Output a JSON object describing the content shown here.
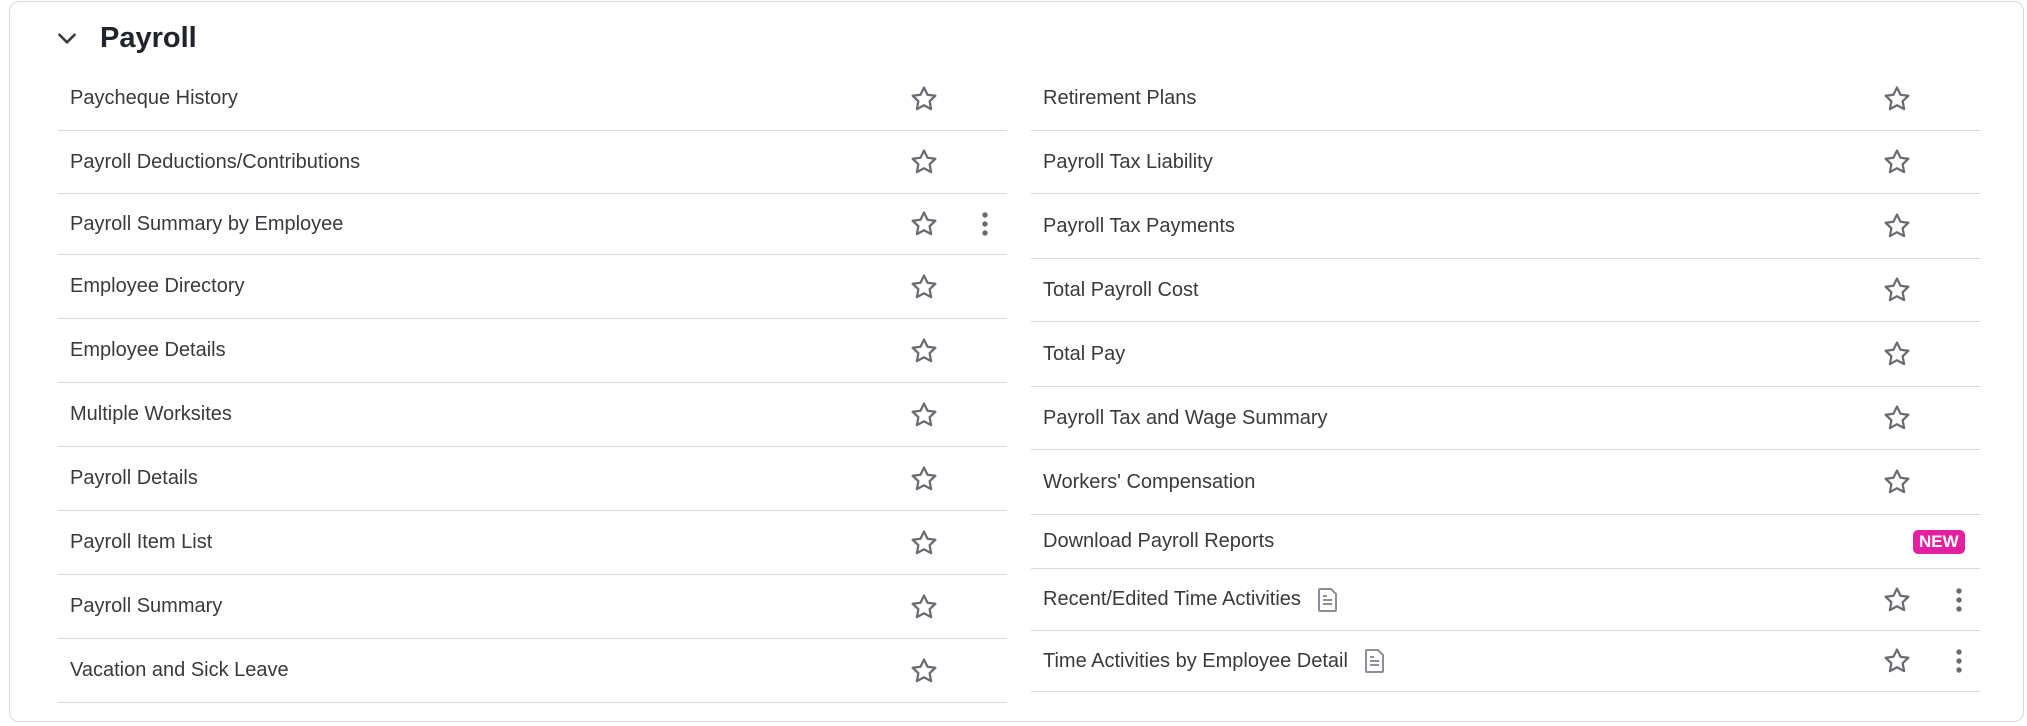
{
  "section": {
    "title": "Payroll",
    "expanded": true
  },
  "left": [
    {
      "label": "Paycheque History",
      "kebab": false
    },
    {
      "label": "Payroll Deductions/Contributions",
      "kebab": false
    },
    {
      "label": "Payroll Summary by Employee",
      "kebab": true
    },
    {
      "label": "Employee Directory",
      "kebab": false
    },
    {
      "label": "Employee Details",
      "kebab": false
    },
    {
      "label": "Multiple Worksites",
      "kebab": false
    },
    {
      "label": "Payroll Details",
      "kebab": false
    },
    {
      "label": "Payroll Item List",
      "kebab": false
    },
    {
      "label": "Payroll Summary",
      "kebab": false
    },
    {
      "label": "Vacation and Sick Leave",
      "kebab": false
    }
  ],
  "right": [
    {
      "label": "Retirement Plans"
    },
    {
      "label": "Payroll Tax Liability"
    },
    {
      "label": "Payroll Tax Payments"
    },
    {
      "label": "Total Payroll Cost"
    },
    {
      "label": "Total Pay"
    },
    {
      "label": "Payroll Tax and Wage Summary"
    },
    {
      "label": "Workers' Compensation"
    },
    {
      "label": "Download Payroll Reports",
      "badge": "NEW"
    },
    {
      "label": "Recent/Edited Time Activities",
      "doc": true,
      "kebab": true
    },
    {
      "label": "Time Activities by Employee Detail",
      "doc": true,
      "kebab": true
    }
  ],
  "colors": {
    "badge": "#e3209f",
    "icon": "#6b6c72"
  }
}
